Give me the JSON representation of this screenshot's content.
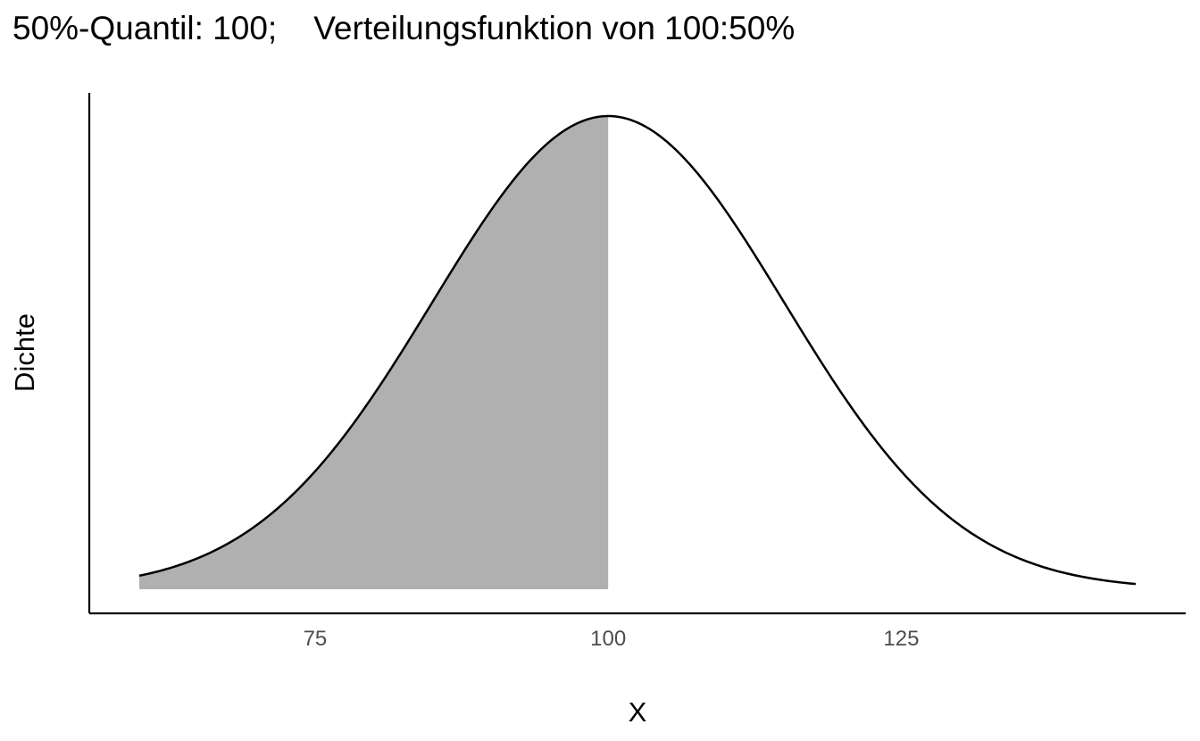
{
  "chart_data": {
    "type": "area",
    "title": "50%-Quantil: 100;    Verteilungsfunktion von 100:50%",
    "xlabel": "X",
    "ylabel": "Dichte",
    "distribution": {
      "family": "normal",
      "mean": 100,
      "sd": 15
    },
    "xlim": [
      60,
      145
    ],
    "x_ticks": [
      75,
      100,
      125
    ],
    "x_tick_labels": [
      "75",
      "100",
      "125"
    ],
    "y_ticks_shown": false,
    "shaded_region": {
      "from": 60,
      "to": 100,
      "color": "#b0b0b0"
    },
    "quantile_probability": "50%",
    "quantile_value": 100,
    "grid": false,
    "colors": {
      "curve": "#000000",
      "fill": "#b0b0b0",
      "axis": "#000000",
      "tick_label": "#4d4d4d"
    }
  }
}
